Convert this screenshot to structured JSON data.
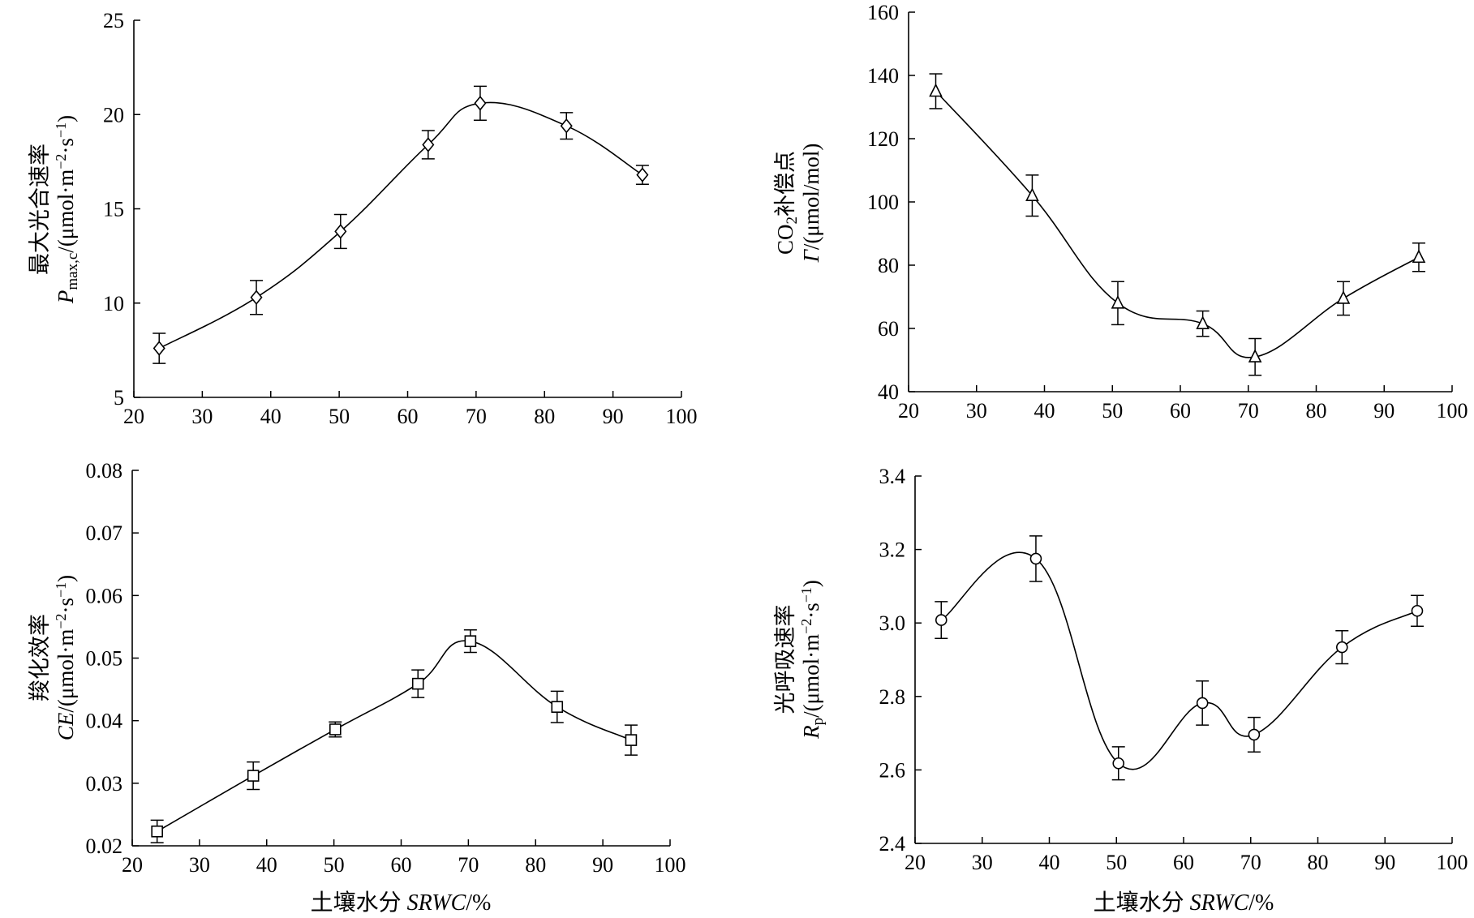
{
  "chart_data": [
    {
      "id": "pmax",
      "type": "line",
      "smooth": true,
      "marker": "diamond",
      "title": "",
      "xlabel": "",
      "ylabel_line1": "最大光合速率",
      "ylabel_line2": "Pmax,c/(μmol·m−2·s−1)",
      "xlim": [
        20,
        100
      ],
      "ylim": [
        5,
        25
      ],
      "xticks": [
        20,
        30,
        40,
        50,
        60,
        70,
        80,
        90,
        100
      ],
      "yticks": [
        5,
        10,
        15,
        20,
        25
      ],
      "ytick_labels": [
        "5",
        "10",
        "15",
        "20",
        "25"
      ],
      "x": [
        23.7,
        37.9,
        50.2,
        63.0,
        70.6,
        83.2,
        94.3
      ],
      "y": [
        7.6,
        10.3,
        13.8,
        18.4,
        20.6,
        19.4,
        16.8
      ],
      "err": [
        0.8,
        0.9,
        0.9,
        0.75,
        0.9,
        0.7,
        0.5
      ]
    },
    {
      "id": "gamma",
      "type": "line",
      "smooth": true,
      "marker": "triangle",
      "title": "",
      "xlabel": "",
      "ylabel_line1": "CO2补偿点",
      "ylabel_line2": "Γ/(μmol/mol)",
      "xlim": [
        20,
        100
      ],
      "ylim": [
        40,
        160
      ],
      "xticks": [
        20,
        30,
        40,
        50,
        60,
        70,
        80,
        90,
        100
      ],
      "yticks": [
        40,
        60,
        80,
        100,
        120,
        140,
        160
      ],
      "ytick_labels": [
        "40",
        "60",
        "80",
        "100",
        "120",
        "140",
        "160"
      ],
      "x": [
        24.0,
        38.2,
        50.8,
        63.3,
        71.0,
        84.0,
        95.1
      ],
      "y": [
        135,
        102,
        68,
        61.5,
        51,
        69.5,
        82.5
      ],
      "err": [
        5.5,
        6.5,
        6.8,
        4,
        5.8,
        5.3,
        4.5
      ]
    },
    {
      "id": "ce",
      "type": "line",
      "smooth": true,
      "marker": "square",
      "title": "",
      "xlabel": "土壤水分 SRWC/%",
      "ylabel_line1": "羧化效率",
      "ylabel_line2": "CE/(μmol·m−2·s−1)",
      "xlim": [
        20,
        100
      ],
      "ylim": [
        0.02,
        0.08
      ],
      "xticks": [
        20,
        30,
        40,
        50,
        60,
        70,
        80,
        90,
        100
      ],
      "yticks": [
        0.02,
        0.03,
        0.04,
        0.05,
        0.06,
        0.07,
        0.08
      ],
      "ytick_labels": [
        "0.02",
        "0.03",
        "0.04",
        "0.05",
        "0.06",
        "0.07",
        "0.08"
      ],
      "x": [
        23.7,
        38.0,
        50.2,
        62.5,
        70.3,
        83.2,
        94.2
      ],
      "y": [
        0.0223,
        0.0312,
        0.0386,
        0.0459,
        0.0527,
        0.0422,
        0.0369
      ],
      "err": [
        0.0018,
        0.0022,
        0.0012,
        0.0022,
        0.0018,
        0.0025,
        0.0024
      ]
    },
    {
      "id": "rp",
      "type": "line",
      "smooth": true,
      "marker": "circle",
      "title": "",
      "xlabel": "土壤水分 SRWC/%",
      "ylabel_line1": "光呼吸速率",
      "ylabel_line2": "Rp/(μmol·m−2·s−1)",
      "xlim": [
        20,
        100
      ],
      "ylim": [
        2.4,
        3.4
      ],
      "xticks": [
        20,
        30,
        40,
        50,
        60,
        70,
        80,
        90,
        100
      ],
      "yticks": [
        2.4,
        2.6,
        2.8,
        3.0,
        3.2,
        3.4
      ],
      "ytick_labels": [
        "2.4",
        "2.6",
        "2.8",
        "3.0",
        "3.2",
        "3.4"
      ],
      "x": [
        23.9,
        38.0,
        50.3,
        62.8,
        70.5,
        83.6,
        94.8
      ],
      "y": [
        3.008,
        3.175,
        2.618,
        2.782,
        2.696,
        2.934,
        3.033
      ],
      "err": [
        0.05,
        0.062,
        0.045,
        0.06,
        0.047,
        0.045,
        0.042
      ]
    }
  ]
}
